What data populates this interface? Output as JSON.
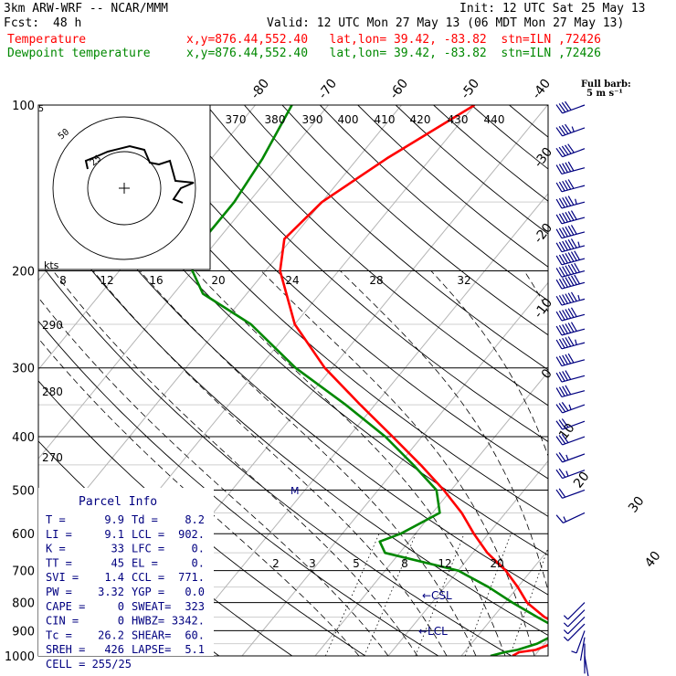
{
  "header": {
    "model": "3km ARW-WRF -- NCAR/MMM",
    "init": "Init: 12 UTC Sat 25 May 13",
    "fcst_label": "Fcst:",
    "fcst_value": "48 h",
    "valid": "Valid: 12 UTC Mon 27 May 13 (06 MDT Mon 27 May 13)",
    "temp_label": "Temperature",
    "temp_loc": "x,y=876.44,552.40   lat,lon= 39.42, -83.82  stn=ILN ,72426",
    "dew_label": "Dewpoint temperature",
    "dew_loc": "x,y=876.44,552.40   lat,lon= 39.42, -83.82  stn=ILN ,72426"
  },
  "colors": {
    "temperature": "#ff0000",
    "dewpoint": "#008800",
    "wind": "#000080",
    "parcel_text": "#000080"
  },
  "chart_data": {
    "type": "line",
    "title": "",
    "y_axis": {
      "label": "pressure (hPa)",
      "scale": "log",
      "range": [
        1000,
        100
      ],
      "ticks": [
        100,
        200,
        300,
        400,
        500,
        600,
        700,
        800,
        900,
        1000
      ]
    },
    "skewed_isotherm_labels": [
      "-80",
      "-70",
      "-60",
      "-50",
      "-40",
      "-30",
      "-20",
      "-10",
      "0",
      "10",
      "20",
      "30",
      "40"
    ],
    "theta_labels": [
      "370",
      "380",
      "390",
      "400",
      "410",
      "420",
      "430",
      "440"
    ],
    "theta_labels_left": [
      "290",
      "280",
      "270"
    ],
    "mixing_ratio_upper": [
      "8",
      "12",
      "16",
      "20",
      "24",
      "28",
      "32"
    ],
    "mixing_ratio_lower": [
      "2",
      "3",
      "5",
      "8",
      "12",
      "20"
    ],
    "series": [
      {
        "name": "Temperature",
        "color": "#ff0000",
        "points": [
          [
            1000,
            17.0
          ],
          [
            985,
            17.5
          ],
          [
            975,
            19.5
          ],
          [
            950,
            21.0
          ],
          [
            925,
            21.5
          ],
          [
            900,
            21.0
          ],
          [
            875,
            19.5
          ],
          [
            850,
            17.0
          ],
          [
            800,
            13.0
          ],
          [
            750,
            10.0
          ],
          [
            700,
            6.5
          ],
          [
            650,
            2.0
          ],
          [
            600,
            -2.0
          ],
          [
            550,
            -6.0
          ],
          [
            500,
            -11.0
          ],
          [
            450,
            -17.0
          ],
          [
            400,
            -24.0
          ],
          [
            350,
            -32.0
          ],
          [
            300,
            -41.0
          ],
          [
            250,
            -50.0
          ],
          [
            200,
            -58.0
          ],
          [
            175,
            -61.0
          ],
          [
            150,
            -60.0
          ],
          [
            125,
            -56.0
          ],
          [
            100,
            -50.0
          ]
        ]
      },
      {
        "name": "Dewpoint temperature",
        "color": "#008800",
        "points": [
          [
            1000,
            14.0
          ],
          [
            985,
            15.5
          ],
          [
            975,
            17.0
          ],
          [
            950,
            19.0
          ],
          [
            925,
            20.0
          ],
          [
            900,
            20.0
          ],
          [
            875,
            18.5
          ],
          [
            850,
            16.0
          ],
          [
            800,
            11.0
          ],
          [
            750,
            6.0
          ],
          [
            700,
            0.0
          ],
          [
            650,
            -12.0
          ],
          [
            620,
            -14.0
          ],
          [
            600,
            -12.0
          ],
          [
            550,
            -9.0
          ],
          [
            500,
            -12.0
          ],
          [
            450,
            -18.0
          ],
          [
            400,
            -25.0
          ],
          [
            350,
            -34.0
          ],
          [
            300,
            -45.0
          ],
          [
            250,
            -56.0
          ],
          [
            220,
            -66.0
          ],
          [
            200,
            -70.0
          ],
          [
            180,
            -72.0
          ],
          [
            150,
            -72.0
          ],
          [
            125,
            -73.0
          ],
          [
            100,
            -75.0
          ]
        ]
      }
    ],
    "wind_barbs": [
      {
        "p": 100,
        "spd": 22,
        "dir": 250
      },
      {
        "p": 110,
        "spd": 24,
        "dir": 250
      },
      {
        "p": 120,
        "spd": 25,
        "dir": 250
      },
      {
        "p": 130,
        "spd": 25,
        "dir": 255
      },
      {
        "p": 140,
        "spd": 27,
        "dir": 255
      },
      {
        "p": 150,
        "spd": 28,
        "dir": 255
      },
      {
        "p": 160,
        "spd": 30,
        "dir": 255
      },
      {
        "p": 170,
        "spd": 31,
        "dir": 255
      },
      {
        "p": 180,
        "spd": 33,
        "dir": 255
      },
      {
        "p": 190,
        "spd": 35,
        "dir": 255
      },
      {
        "p": 200,
        "spd": 36,
        "dir": 255
      },
      {
        "p": 210,
        "spd": 35,
        "dir": 255
      },
      {
        "p": 225,
        "spd": 34,
        "dir": 255
      },
      {
        "p": 240,
        "spd": 32,
        "dir": 255
      },
      {
        "p": 255,
        "spd": 30,
        "dir": 255
      },
      {
        "p": 270,
        "spd": 28,
        "dir": 255
      },
      {
        "p": 290,
        "spd": 25,
        "dir": 255
      },
      {
        "p": 310,
        "spd": 22,
        "dir": 255
      },
      {
        "p": 330,
        "spd": 20,
        "dir": 255
      },
      {
        "p": 350,
        "spd": 18,
        "dir": 250
      },
      {
        "p": 375,
        "spd": 16,
        "dir": 250
      },
      {
        "p": 400,
        "spd": 15,
        "dir": 250
      },
      {
        "p": 430,
        "spd": 14,
        "dir": 250
      },
      {
        "p": 460,
        "spd": 13,
        "dir": 250
      },
      {
        "p": 500,
        "spd": 11,
        "dir": 250
      },
      {
        "p": 550,
        "spd": 9,
        "dir": 245
      },
      {
        "p": 800,
        "spd": 3,
        "dir": 225
      },
      {
        "p": 825,
        "spd": 4,
        "dir": 225
      },
      {
        "p": 850,
        "spd": 4,
        "dir": 225
      },
      {
        "p": 875,
        "spd": 4,
        "dir": 225
      },
      {
        "p": 900,
        "spd": 3,
        "dir": 200
      },
      {
        "p": 925,
        "spd": 2,
        "dir": 190
      },
      {
        "p": 950,
        "spd": 2,
        "dir": 180
      },
      {
        "p": 975,
        "spd": 1,
        "dir": 180
      },
      {
        "p": 1000,
        "spd": 1,
        "dir": 170
      }
    ],
    "full_barb_label": "Full barb:",
    "full_barb_value": "5 m s⁻¹",
    "hodograph": {
      "unit_label": "kts",
      "ring_labels": [
        "5",
        "25",
        "50"
      ]
    },
    "annotations": [
      "CSL",
      "LCL",
      "M"
    ]
  },
  "parcel_info": {
    "title": "Parcel Info",
    "rows": [
      [
        "T  =",
        "9.9",
        "Td =",
        "8.2"
      ],
      [
        "LI =",
        "9.1",
        "LCL =",
        "902."
      ],
      [
        "K  =",
        "33",
        "LFC =",
        "0."
      ],
      [
        "TT =",
        "45",
        "EL  =",
        "0."
      ],
      [
        "SVI =",
        "1.4",
        "CCL =",
        "771."
      ],
      [
        "PW =",
        "3.32",
        "YGP =",
        "0.0"
      ],
      [
        "CAPE =",
        "0",
        "SWEAT=",
        "323"
      ],
      [
        "CIN  =",
        "0",
        "HWBZ=",
        "3342."
      ],
      [
        "Tc  =",
        "26.2",
        "SHEAR=",
        "60."
      ],
      [
        "SREH =",
        "426",
        "LAPSE=",
        "5.1"
      ]
    ],
    "cell_label": "CELL =",
    "cell_value": "255/25"
  }
}
